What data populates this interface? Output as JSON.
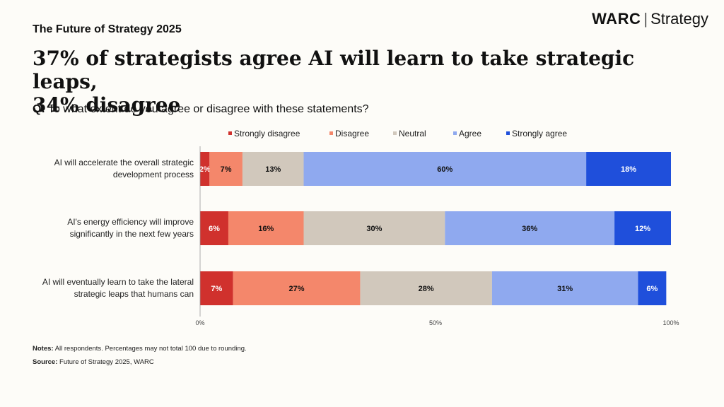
{
  "header": {
    "kicker": "The Future of Strategy 2025",
    "brand_name": "WARC",
    "brand_separator": "|",
    "brand_product": "Strategy",
    "headline_line1": "37% of strategists agree AI will learn to take strategic leaps,",
    "headline_line2": "34% disagree",
    "question_prefix": "Q:",
    "question_text": "To what extent do you agree or disagree with these statements?"
  },
  "chart_data": {
    "type": "bar",
    "orientation": "horizontal",
    "stacked": true,
    "categories": [
      [
        "AI will accelerate the overall strategic",
        "development process"
      ],
      [
        "AI's energy efficiency will improve",
        "significantly in the next few years"
      ],
      [
        "AI will eventually learn to take the lateral",
        "strategic leaps that humans can"
      ]
    ],
    "series": [
      {
        "name": "Strongly disagree",
        "color": "#d0312d",
        "values": [
          2,
          6,
          7
        ],
        "labels": [
          "2%",
          "6%",
          "7%"
        ],
        "label_color": "#ffffff"
      },
      {
        "name": "Disagree",
        "color": "#f4876b",
        "values": [
          7,
          16,
          27
        ],
        "labels": [
          "7%",
          "16%",
          "27%"
        ],
        "label_color": "#111111"
      },
      {
        "name": "Neutral",
        "color": "#d1c8bc",
        "values": [
          13,
          30,
          28
        ],
        "labels": [
          "13%",
          "30%",
          "28%"
        ],
        "label_color": "#111111"
      },
      {
        "name": "Agree",
        "color": "#8fa9ef",
        "values": [
          60,
          36,
          31
        ],
        "labels": [
          "60%",
          "36%",
          "31%"
        ],
        "label_color": "#111111"
      },
      {
        "name": "Strongly agree",
        "color": "#1f4fdb",
        "values": [
          18,
          12,
          6
        ],
        "labels": [
          "18%",
          "12%",
          "6%"
        ],
        "label_color": "#ffffff"
      }
    ],
    "xlim": [
      0,
      100
    ],
    "xticks": [
      0,
      50,
      100
    ],
    "xtick_labels": [
      "0%",
      "50%",
      "100%"
    ],
    "legend": "top",
    "grid": false
  },
  "footer": {
    "notes_label": "Notes:",
    "notes_text": "All respondents. Percentages may not total 100 due to rounding.",
    "source_label": "Source:",
    "source_text": "Future of Strategy 2025, WARC"
  }
}
